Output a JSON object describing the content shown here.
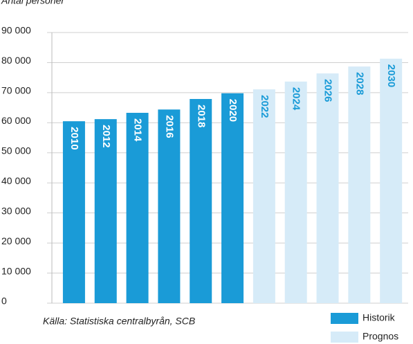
{
  "chart_data": {
    "type": "bar",
    "ylabel": "Antal personer",
    "source": "Källa: Statistiska centralbyrån, SCB",
    "categories": [
      "2010",
      "2012",
      "2014",
      "2016",
      "2018",
      "2020",
      "2022",
      "2024",
      "2026",
      "2028",
      "2030"
    ],
    "series": [
      {
        "name": "Historik",
        "color": "#1a9bd7",
        "values": [
          60500,
          61200,
          63300,
          64400,
          67900,
          69800,
          null,
          null,
          null,
          null,
          null
        ]
      },
      {
        "name": "Prognos",
        "color": "#d6ebf8",
        "values": [
          null,
          null,
          null,
          null,
          null,
          null,
          71100,
          73700,
          76400,
          78700,
          81300
        ]
      }
    ],
    "ylim": [
      0,
      90000
    ],
    "yticks": [
      0,
      {
        "value": 10000,
        "label": "10 000"
      },
      {
        "value": 20000,
        "label": "20 000"
      },
      {
        "value": 30000,
        "label": "30 000"
      },
      {
        "value": 40000,
        "label": "40 000"
      },
      {
        "value": 50000,
        "label": "50 000"
      },
      {
        "value": 60000,
        "label": "60 000"
      },
      {
        "value": 70000,
        "label": "70 000"
      },
      {
        "value": 80000,
        "label": "80 000"
      },
      {
        "value": 90000,
        "label": "90 000"
      }
    ],
    "grid": true,
    "legend": "bottom-right"
  }
}
